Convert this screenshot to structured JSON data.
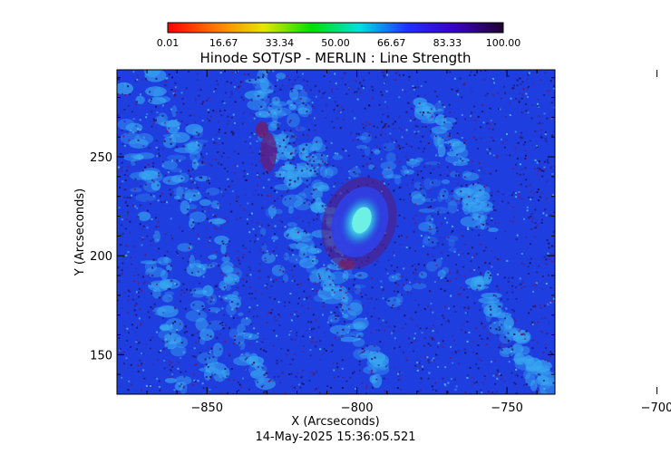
{
  "colorbar": {
    "tick_labels": [
      "0.01",
      "16.67",
      "33.34",
      "50.00",
      "66.67",
      "83.33",
      "100.00"
    ],
    "range": [
      0.01,
      100.0
    ],
    "colormap": [
      "#ff0000",
      "#ff7a00",
      "#e8e600",
      "#00e000",
      "#00e0e0",
      "#2030ff",
      "#3a00c0",
      "#200030"
    ]
  },
  "title": "Hinode SOT/SP - MERLIN : Line Strength",
  "x_axis": {
    "label": "X (Arcseconds)",
    "range": [
      -880,
      -734
    ],
    "ticks": [
      {
        "value": -850,
        "label": "−850"
      },
      {
        "value": -800,
        "label": "−800"
      },
      {
        "value": -750,
        "label": "−750"
      },
      {
        "value": -700,
        "label": "−700"
      }
    ]
  },
  "y_axis": {
    "label": "Y (Arcseconds)",
    "range": [
      130,
      294
    ],
    "ticks": [
      {
        "value": 150,
        "label": "150"
      },
      {
        "value": 200,
        "label": "200"
      },
      {
        "value": 250,
        "label": "250"
      }
    ]
  },
  "timestamp": "14-May-2025 15:36:05.521",
  "image_colors": {
    "background": "#1e3ee0",
    "bright_patch": "#38a8f0",
    "dark_speckle": "#241870",
    "spot_core": "#40e8e0",
    "spot_ring": "#781c70"
  }
}
